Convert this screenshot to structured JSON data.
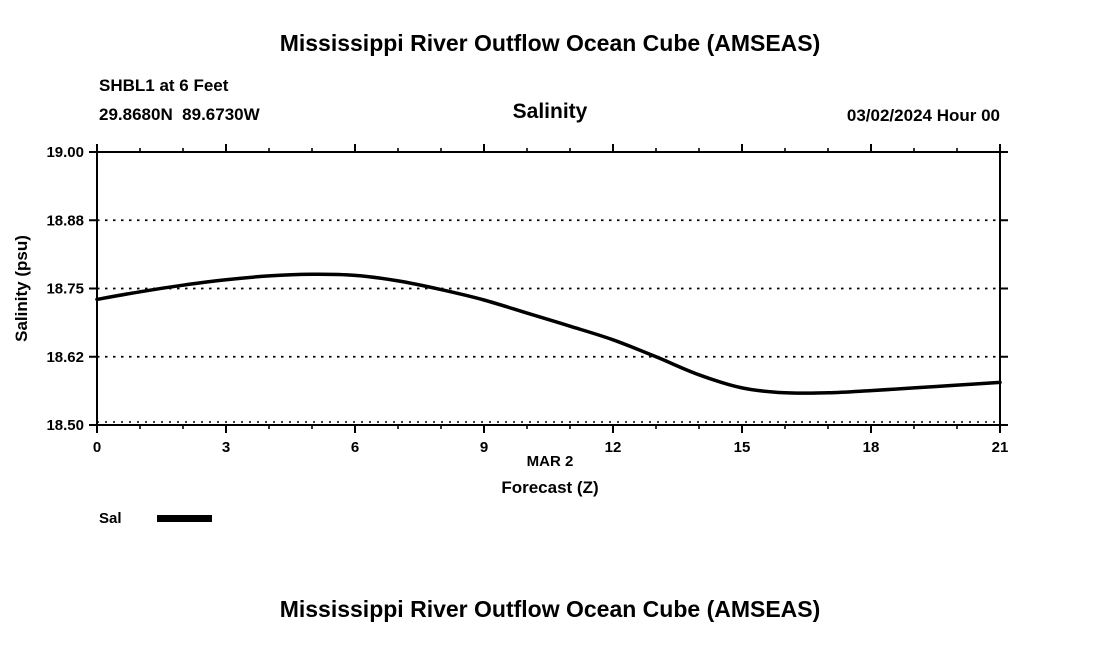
{
  "page": {
    "top_title": "Mississippi River Outflow Ocean Cube (AMSEAS)",
    "bottom_title": "Mississippi River Outflow Ocean Cube (AMSEAS)"
  },
  "header": {
    "station": "SHBL1 at 6 Feet",
    "coordinates": "29.8680N  89.6730W",
    "plot_title": "Salinity",
    "datetime": "03/02/2024 Hour 00"
  },
  "chart_data": {
    "type": "line",
    "title": "Salinity",
    "ylabel": "Salinity (psu)",
    "xlabel_line1": "MAR 2",
    "xlabel_line2": "Forecast (Z)",
    "xlim": [
      0,
      21
    ],
    "ylim": [
      18.5,
      19.0
    ],
    "x_ticks": [
      0,
      3,
      6,
      9,
      12,
      15,
      18,
      21
    ],
    "x_minor_step": 1,
    "y_ticks": [
      18.5,
      18.625,
      18.75,
      18.875,
      19.0
    ],
    "y_tick_labels": [
      "18.50",
      "18.62",
      "18.75",
      "18.88",
      "19.00"
    ],
    "grid": "horizontal-dotted",
    "legend_position": "bottom-left",
    "line_color": "#000000",
    "line_width": 3.5,
    "legend": [
      {
        "name": "Sal",
        "color": "#000000"
      }
    ],
    "series": [
      {
        "name": "Sal",
        "x": [
          0,
          1,
          2,
          3,
          4,
          5,
          6,
          7,
          8,
          9,
          10,
          11,
          12,
          13,
          14,
          15,
          16,
          17,
          18,
          19,
          20,
          21
        ],
        "y": [
          18.73,
          18.744,
          18.756,
          18.766,
          18.773,
          18.776,
          18.774,
          18.764,
          18.748,
          18.729,
          18.705,
          18.681,
          18.656,
          18.625,
          18.592,
          18.568,
          18.559,
          18.559,
          18.563,
          18.568,
          18.573,
          18.578
        ]
      }
    ]
  }
}
